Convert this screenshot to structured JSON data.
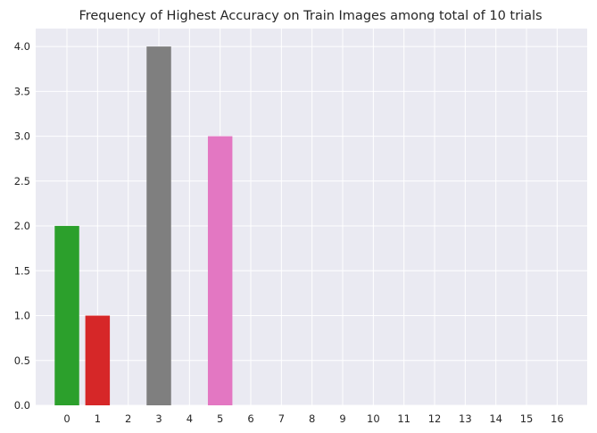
{
  "chart_data": {
    "type": "bar",
    "title": "Frequency of Highest Accuracy on Train Images among total of 10 trials",
    "xlabel": "",
    "ylabel": "",
    "categories": [
      "0",
      "1",
      "2",
      "3",
      "4",
      "5",
      "6",
      "7",
      "8",
      "9",
      "10",
      "11",
      "12",
      "13",
      "14",
      "15",
      "16"
    ],
    "values": [
      2,
      1,
      0,
      4,
      0,
      3,
      0,
      0,
      0,
      0,
      0,
      0,
      0,
      0,
      0,
      0,
      0
    ],
    "bar_colors": [
      "#2ca02c",
      "#d62728",
      "#1f77b4",
      "#7f7f7f",
      "#9467bd",
      "#e377c2",
      "#8c564b",
      "#bcbd22",
      "#17becf",
      "#1f77b4",
      "#ff7f0e",
      "#2ca02c",
      "#d62728",
      "#9467bd",
      "#8c564b",
      "#e377c2",
      "#7f7f7f"
    ],
    "ylim": [
      0,
      4.2
    ],
    "yticks": [
      "0.0",
      "0.5",
      "1.0",
      "1.5",
      "2.0",
      "2.5",
      "3.0",
      "3.5",
      "4.0"
    ],
    "grid": true,
    "background_color": "#eaeaf2",
    "grid_color": "#ffffff"
  }
}
